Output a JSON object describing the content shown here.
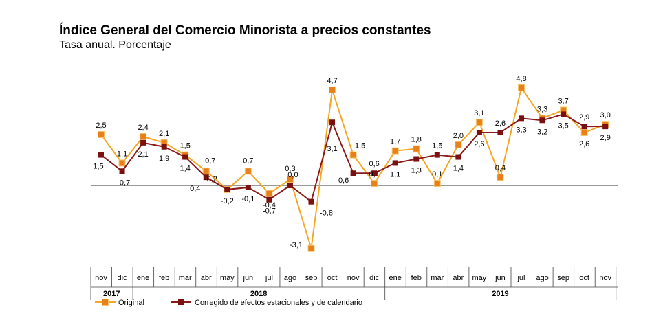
{
  "title": "Índice General del Comercio Minorista a precios constantes",
  "subtitle": "Tasa anual. Porcentaje",
  "chart_data": {
    "type": "line",
    "categories": [
      "nov",
      "dic",
      "ene",
      "feb",
      "mar",
      "abr",
      "may",
      "jun",
      "jul",
      "ago",
      "sep",
      "oct",
      "nov",
      "dic",
      "ene",
      "feb",
      "mar",
      "abr",
      "may",
      "jun",
      "jul",
      "ago",
      "sep",
      "oct",
      "nov"
    ],
    "years": [
      {
        "label": "2017",
        "from": 0,
        "to": 1
      },
      {
        "label": "2018",
        "from": 2,
        "to": 13
      },
      {
        "label": "2019",
        "from": 14,
        "to": 24
      }
    ],
    "series": [
      {
        "name": "Original",
        "color": "#f5a623",
        "marker_color": "#e8801a",
        "values": [
          2.5,
          1.1,
          2.4,
          2.1,
          1.5,
          0.7,
          -0.2,
          0.7,
          -0.4,
          0.3,
          -3.1,
          4.7,
          1.5,
          0.1,
          1.7,
          1.8,
          0.1,
          2.0,
          3.1,
          0.4,
          4.8,
          3.3,
          3.7,
          2.6,
          3.0
        ],
        "labels": [
          "2,5",
          "1,1",
          "2,4",
          "2,1",
          "1,5",
          "0,7",
          "-0,2",
          "0,7",
          "-0,4",
          "0,3",
          "-3,1",
          "4,7",
          "1,5",
          "0,1",
          "1,7",
          "1,8",
          "0,1",
          "2,0",
          "3,1",
          "0,4",
          "4,8",
          "3,3",
          "3,7",
          "2,6",
          "3,0"
        ]
      },
      {
        "name": "Corregido de efectos estacionales y de calendario",
        "color": "#8b1a1a",
        "marker_color": "#7a1010",
        "values": [
          1.5,
          0.7,
          2.1,
          1.9,
          1.4,
          0.4,
          -0.2,
          -0.1,
          -0.7,
          0.0,
          -0.8,
          3.1,
          0.6,
          0.6,
          1.1,
          1.3,
          1.5,
          1.4,
          2.6,
          2.6,
          3.3,
          3.2,
          3.5,
          2.9,
          2.9
        ],
        "labels": [
          "1,5",
          "0,7",
          "2,1",
          "1,9",
          "1,4",
          "0,4",
          "-0,2",
          "-0,1",
          "-0,7",
          "0,0",
          "-0,8",
          "3,1",
          "0,6",
          "0,6",
          "1,1",
          "1,3",
          "1,5",
          "1,4",
          "2,6",
          "2,6",
          "3,3",
          "3,2",
          "3,5",
          "2,9",
          "2,9"
        ]
      }
    ],
    "grid": false,
    "legend": "bottom-left"
  }
}
